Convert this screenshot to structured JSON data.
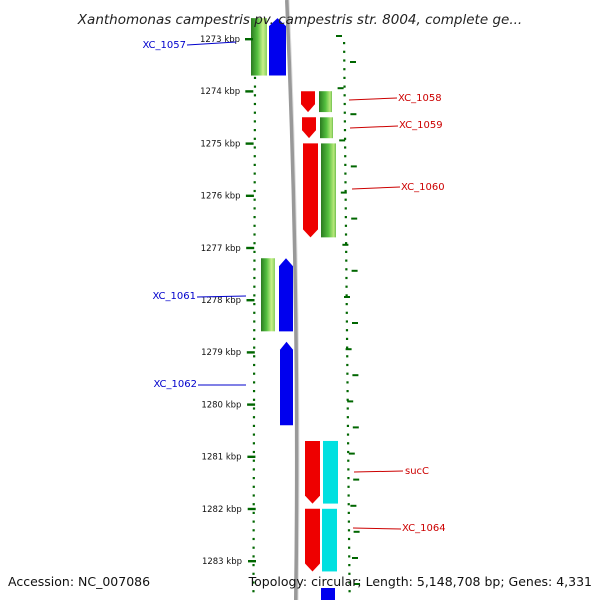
{
  "title": "Xanthomonas campestris pv. campestris str. 8004, complete ge...",
  "footer": {
    "accession": "Accession: NC_007086",
    "summary": "Topology: circular; Length: 5,148,708 bp; Genes: 4,331"
  },
  "axis": {
    "unit": "kbp",
    "ticks": [
      "1273 kbp",
      "1274 kbp",
      "1275 kbp",
      "1276 kbp",
      "1277 kbp",
      "1278 kbp",
      "1279 kbp",
      "1280 kbp",
      "1281 kbp",
      "1282 kbp",
      "1283 kbp"
    ]
  },
  "colors": {
    "backbone": "#999999",
    "forward_label": "#cc0000",
    "reverse_label": "#0000cc",
    "red": "#ee0000",
    "blue": "#0000ee",
    "green": "#44bb33",
    "cyan": "#00e0e0",
    "track": "#006600"
  },
  "genes": [
    {
      "id": "XC_1057",
      "start_kbp": 1272.6,
      "end_kbp": 1273.7,
      "strand": "-",
      "color": "blue"
    },
    {
      "id": "XC_1058",
      "start_kbp": 1274.0,
      "end_kbp": 1274.4,
      "strand": "+",
      "color": "red"
    },
    {
      "id": "XC_1059",
      "start_kbp": 1274.5,
      "end_kbp": 1274.9,
      "strand": "+",
      "color": "red"
    },
    {
      "id": "XC_1060",
      "start_kbp": 1275.0,
      "end_kbp": 1276.8,
      "strand": "+",
      "color": "red"
    },
    {
      "id": "XC_1061",
      "start_kbp": 1277.2,
      "end_kbp": 1278.6,
      "strand": "-",
      "color": "blue"
    },
    {
      "id": "XC_1062",
      "start_kbp": 1278.8,
      "end_kbp": 1280.4,
      "strand": "-",
      "color": "blue"
    },
    {
      "id": "sucC",
      "start_kbp": 1280.7,
      "end_kbp": 1281.9,
      "strand": "+",
      "color": "red"
    },
    {
      "id": "XC_1064",
      "start_kbp": 1282.0,
      "end_kbp": 1283.2,
      "strand": "+",
      "color": "red"
    }
  ]
}
